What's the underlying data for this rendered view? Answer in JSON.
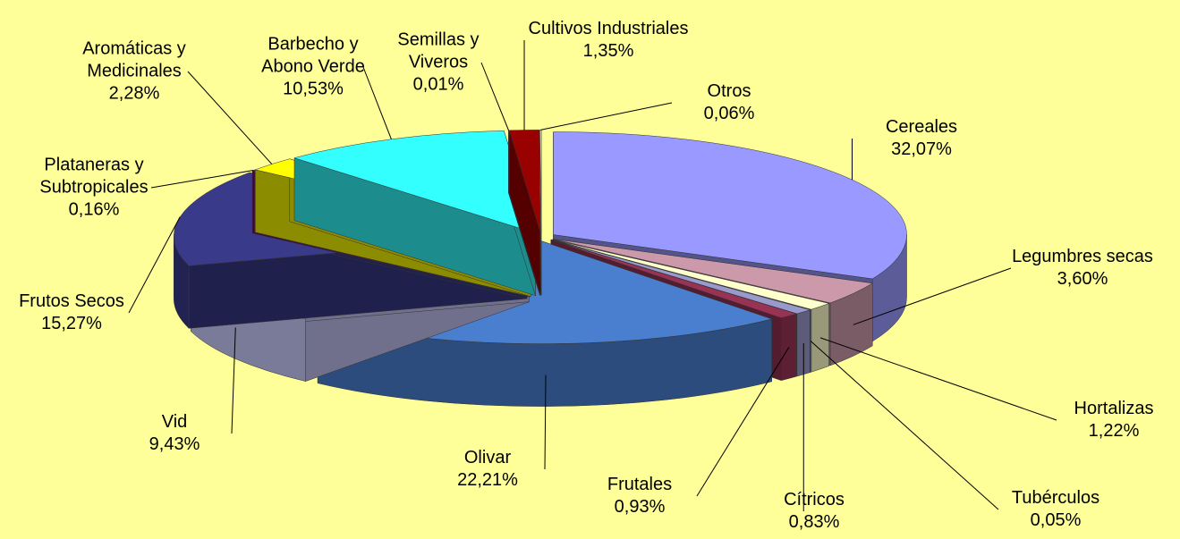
{
  "chart_data": {
    "type": "pie3d",
    "categories": [
      "Cereales",
      "Legumbres secas",
      "Hortalizas",
      "Tubérculos",
      "Cítricos",
      "Frutales",
      "Olivar",
      "Vid",
      "Frutos Secos",
      "Plataneras y Subtropicales",
      "Aromáticas y Medicinales",
      "Barbecho y Abono Verde",
      "Semillas y Viveros",
      "Cultivos Industriales",
      "Otros"
    ],
    "values": [
      32.07,
      3.6,
      1.22,
      0.05,
      0.83,
      0.93,
      22.21,
      9.43,
      15.27,
      0.16,
      2.28,
      10.53,
      0.01,
      1.35,
      0.06
    ],
    "value_labels": [
      "32,07%",
      "3,60%",
      "1,22%",
      "0,05%",
      "0,83%",
      "0,93%",
      "22,21%",
      "9,43%",
      "15,27%",
      "0,16%",
      "2,28%",
      "10,53%",
      "0,01%",
      "1,35%",
      "0,06%"
    ],
    "colors": [
      "#9999ff",
      "#cc99aa",
      "#ffffcc",
      "#ccffff",
      "#9999cc",
      "#993355",
      "#4a7fd0",
      "#ccccff",
      "#3a3a8a",
      "#800080",
      "#ffff00",
      "#33ffff",
      "#000080",
      "#990000",
      "#ffffcc"
    ]
  }
}
